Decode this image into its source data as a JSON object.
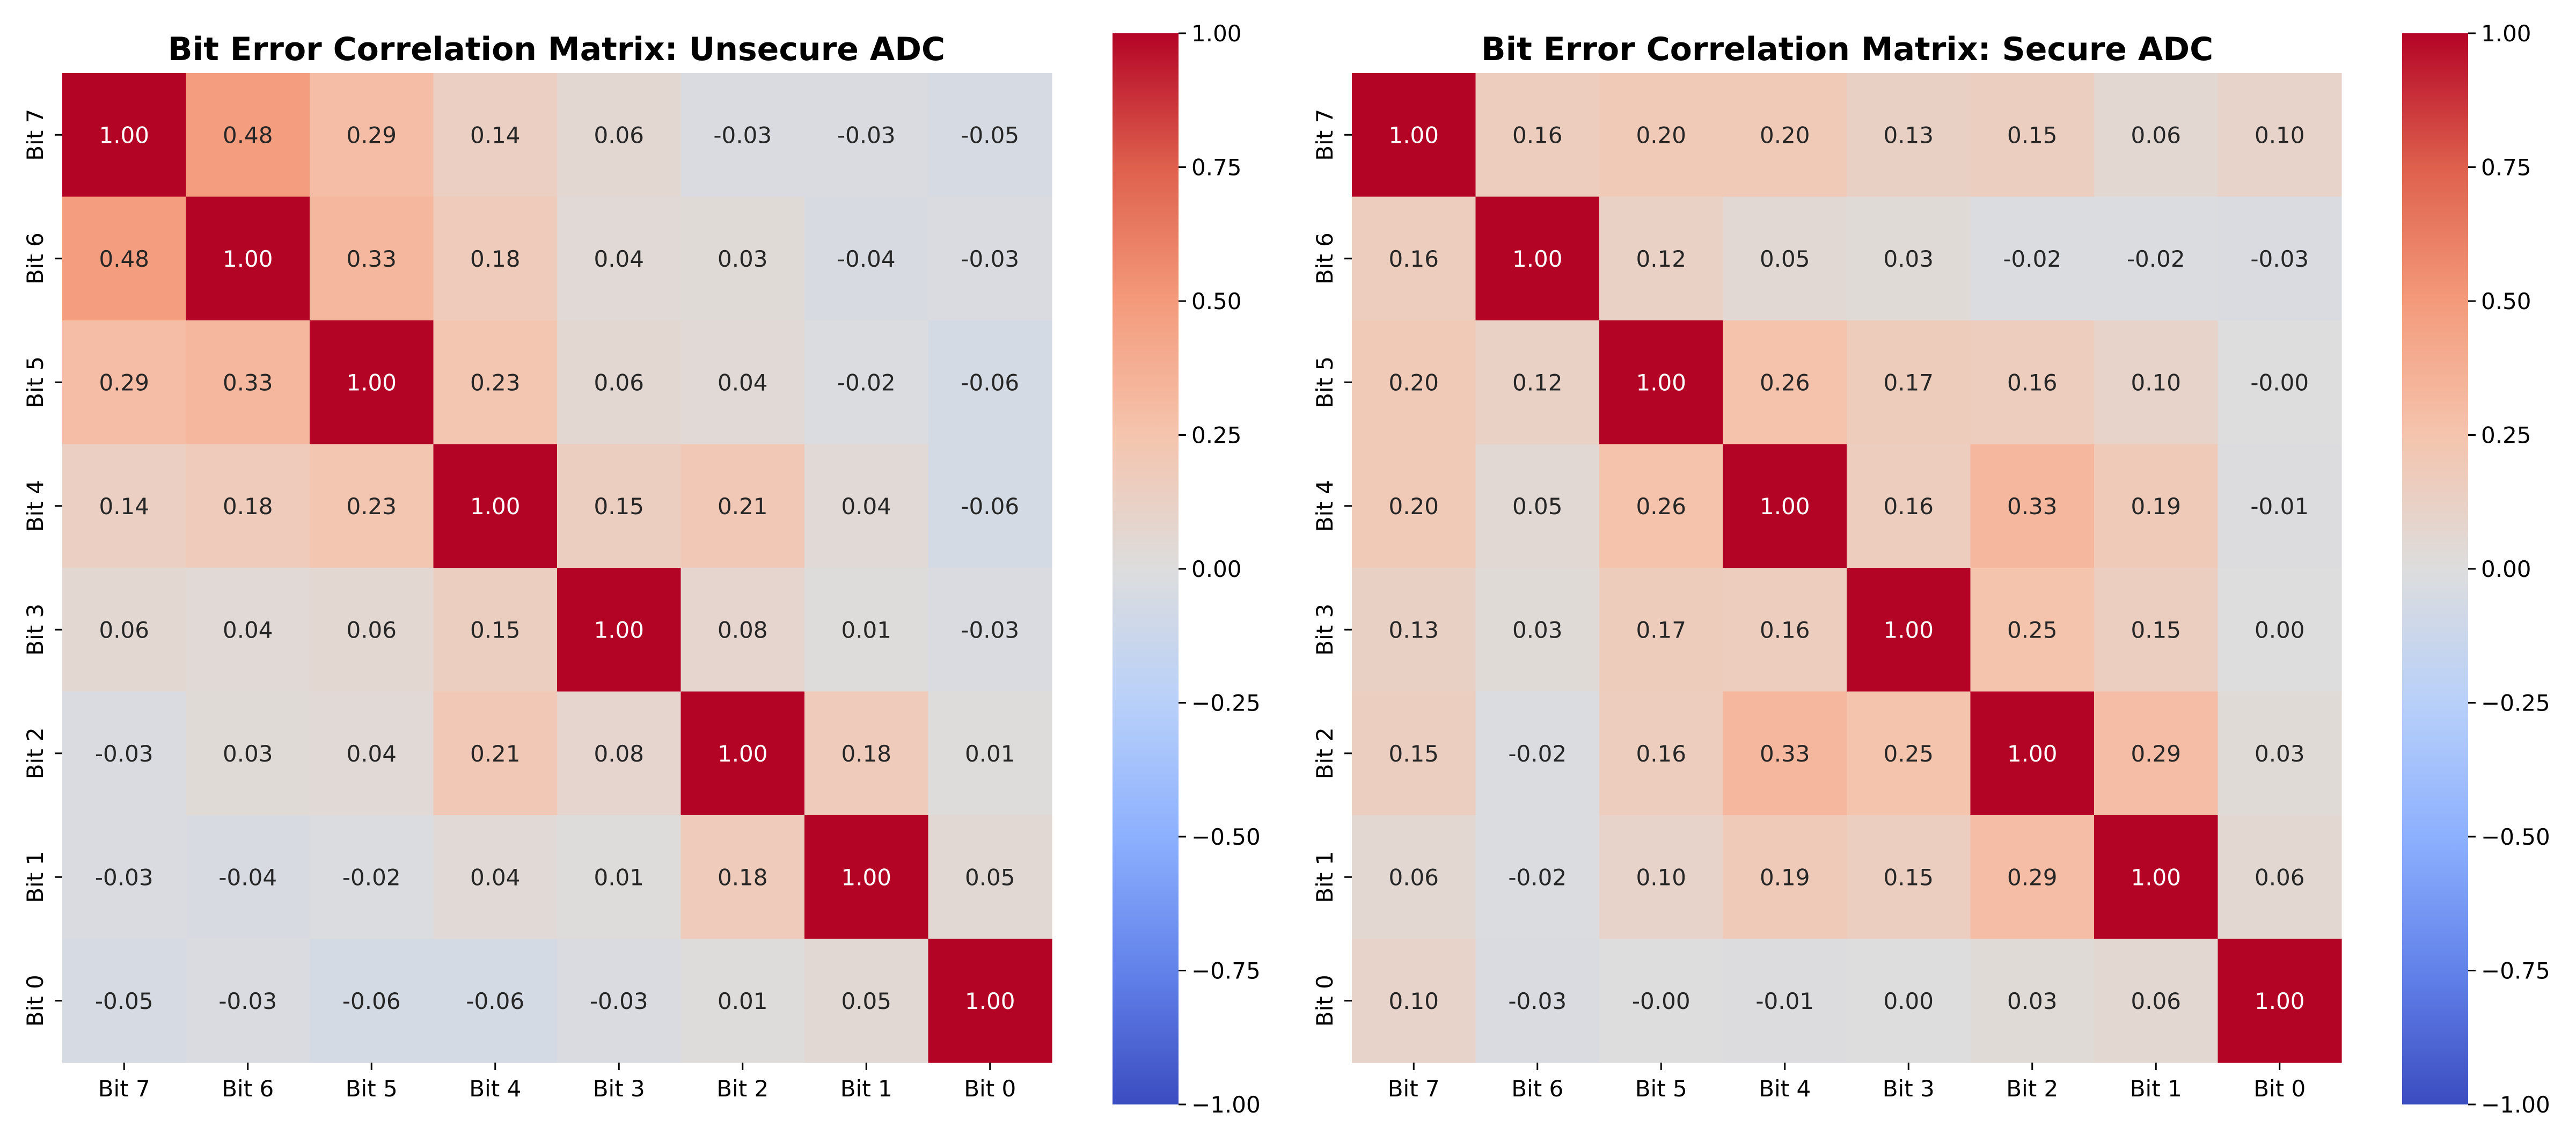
{
  "chart_data": [
    {
      "type": "heatmap",
      "title": "Bit Error Correlation Matrix: Unsecure ADC",
      "xlabel": "",
      "ylabel": "",
      "x_categories": [
        "Bit 7",
        "Bit 6",
        "Bit 5",
        "Bit 4",
        "Bit 3",
        "Bit 2",
        "Bit 1",
        "Bit 0"
      ],
      "y_categories": [
        "Bit 7",
        "Bit 6",
        "Bit 5",
        "Bit 4",
        "Bit 3",
        "Bit 2",
        "Bit 1",
        "Bit 0"
      ],
      "values": [
        [
          1.0,
          0.48,
          0.29,
          0.14,
          0.06,
          -0.03,
          -0.03,
          -0.05
        ],
        [
          0.48,
          1.0,
          0.33,
          0.18,
          0.04,
          0.03,
          -0.04,
          -0.03
        ],
        [
          0.29,
          0.33,
          1.0,
          0.23,
          0.06,
          0.04,
          -0.02,
          -0.06
        ],
        [
          0.14,
          0.18,
          0.23,
          1.0,
          0.15,
          0.21,
          0.04,
          -0.06
        ],
        [
          0.06,
          0.04,
          0.06,
          0.15,
          1.0,
          0.08,
          0.01,
          -0.03
        ],
        [
          -0.03,
          0.03,
          0.04,
          0.21,
          0.08,
          1.0,
          0.18,
          0.01
        ],
        [
          -0.03,
          -0.04,
          -0.02,
          0.04,
          0.01,
          0.18,
          1.0,
          0.05
        ],
        [
          -0.05,
          -0.03,
          -0.06,
          -0.06,
          -0.03,
          0.01,
          0.05,
          1.0
        ]
      ],
      "annotations": [
        [
          "1.00",
          "0.48",
          "0.29",
          "0.14",
          "0.06",
          "-0.03",
          "-0.03",
          "-0.05"
        ],
        [
          "0.48",
          "1.00",
          "0.33",
          "0.18",
          "0.04",
          "0.03",
          "-0.04",
          "-0.03"
        ],
        [
          "0.29",
          "0.33",
          "1.00",
          "0.23",
          "0.06",
          "0.04",
          "-0.02",
          "-0.06"
        ],
        [
          "0.14",
          "0.18",
          "0.23",
          "1.00",
          "0.15",
          "0.21",
          "0.04",
          "-0.06"
        ],
        [
          "0.06",
          "0.04",
          "0.06",
          "0.15",
          "1.00",
          "0.08",
          "0.01",
          "-0.03"
        ],
        [
          "-0.03",
          "0.03",
          "0.04",
          "0.21",
          "0.08",
          "1.00",
          "0.18",
          "0.01"
        ],
        [
          "-0.03",
          "-0.04",
          "-0.02",
          "0.04",
          "0.01",
          "0.18",
          "1.00",
          "0.05"
        ],
        [
          "-0.05",
          "-0.03",
          "-0.06",
          "-0.06",
          "-0.03",
          "0.01",
          "0.05",
          "1.00"
        ]
      ],
      "colormap": "coolwarm",
      "vmin": -1.0,
      "vmax": 1.0,
      "colorbar_ticks": [
        "1.00",
        "0.75",
        "0.50",
        "0.25",
        "0.00",
        "−0.25",
        "−0.50",
        "−0.75",
        "−1.00"
      ],
      "colorbar_tick_values": [
        1.0,
        0.75,
        0.5,
        0.25,
        0.0,
        -0.25,
        -0.5,
        -0.75,
        -1.0
      ]
    },
    {
      "type": "heatmap",
      "title": "Bit Error Correlation Matrix: Secure ADC",
      "xlabel": "",
      "ylabel": "",
      "x_categories": [
        "Bit 7",
        "Bit 6",
        "Bit 5",
        "Bit 4",
        "Bit 3",
        "Bit 2",
        "Bit 1",
        "Bit 0"
      ],
      "y_categories": [
        "Bit 7",
        "Bit 6",
        "Bit 5",
        "Bit 4",
        "Bit 3",
        "Bit 2",
        "Bit 1",
        "Bit 0"
      ],
      "values": [
        [
          1.0,
          0.16,
          0.2,
          0.2,
          0.13,
          0.15,
          0.06,
          0.1
        ],
        [
          0.16,
          1.0,
          0.12,
          0.05,
          0.03,
          -0.02,
          -0.02,
          -0.03
        ],
        [
          0.2,
          0.12,
          1.0,
          0.26,
          0.17,
          0.16,
          0.1,
          -0.0
        ],
        [
          0.2,
          0.05,
          0.26,
          1.0,
          0.16,
          0.33,
          0.19,
          -0.01
        ],
        [
          0.13,
          0.03,
          0.17,
          0.16,
          1.0,
          0.25,
          0.15,
          0.0
        ],
        [
          0.15,
          -0.02,
          0.16,
          0.33,
          0.25,
          1.0,
          0.29,
          0.03
        ],
        [
          0.06,
          -0.02,
          0.1,
          0.19,
          0.15,
          0.29,
          1.0,
          0.06
        ],
        [
          0.1,
          -0.03,
          -0.0,
          -0.01,
          0.0,
          0.03,
          0.06,
          1.0
        ]
      ],
      "annotations": [
        [
          "1.00",
          "0.16",
          "0.20",
          "0.20",
          "0.13",
          "0.15",
          "0.06",
          "0.10"
        ],
        [
          "0.16",
          "1.00",
          "0.12",
          "0.05",
          "0.03",
          "-0.02",
          "-0.02",
          "-0.03"
        ],
        [
          "0.20",
          "0.12",
          "1.00",
          "0.26",
          "0.17",
          "0.16",
          "0.10",
          "-0.00"
        ],
        [
          "0.20",
          "0.05",
          "0.26",
          "1.00",
          "0.16",
          "0.33",
          "0.19",
          "-0.01"
        ],
        [
          "0.13",
          "0.03",
          "0.17",
          "0.16",
          "1.00",
          "0.25",
          "0.15",
          "0.00"
        ],
        [
          "0.15",
          "-0.02",
          "0.16",
          "0.33",
          "0.25",
          "1.00",
          "0.29",
          "0.03"
        ],
        [
          "0.06",
          "-0.02",
          "0.10",
          "0.19",
          "0.15",
          "0.29",
          "1.00",
          "0.06"
        ],
        [
          "0.10",
          "-0.03",
          "-0.00",
          "-0.01",
          "0.00",
          "0.03",
          "0.06",
          "1.00"
        ]
      ],
      "colormap": "coolwarm",
      "vmin": -1.0,
      "vmax": 1.0,
      "colorbar_ticks": [
        "1.00",
        "0.75",
        "0.50",
        "0.25",
        "0.00",
        "−0.25",
        "−0.50",
        "−0.75",
        "−1.00"
      ],
      "colorbar_tick_values": [
        1.0,
        0.75,
        0.5,
        0.25,
        0.0,
        -0.25,
        -0.5,
        -0.75,
        -1.0
      ]
    }
  ]
}
